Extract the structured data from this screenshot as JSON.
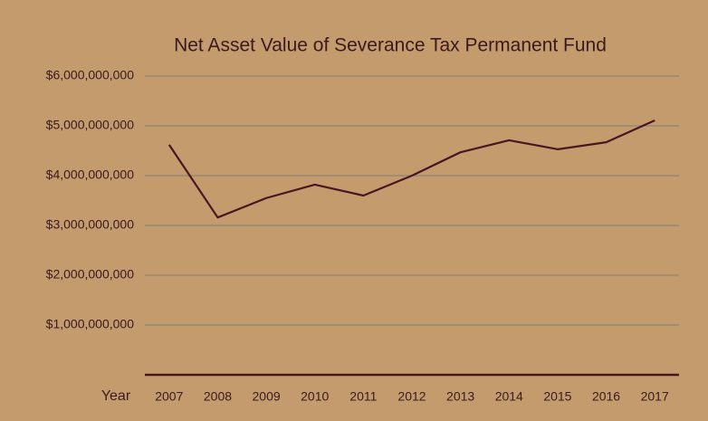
{
  "chart_data": {
    "type": "line",
    "title": "Net Asset Value of Severance Tax Permanent Fund",
    "x_label": "Year",
    "categories": [
      "2007",
      "2008",
      "2009",
      "2010",
      "2011",
      "2012",
      "2013",
      "2014",
      "2015",
      "2016",
      "2017"
    ],
    "series": [
      {
        "name": "Net Asset Value",
        "color": "#4a1522",
        "values": [
          4620000000,
          3160000000,
          3550000000,
          3820000000,
          3600000000,
          4000000000,
          4470000000,
          4710000000,
          4530000000,
          4670000000,
          5110000000
        ]
      }
    ],
    "ylim": [
      0,
      6000000000
    ],
    "yticks": [
      {
        "value": 1000000000,
        "label": "$1,000,000,000"
      },
      {
        "value": 2000000000,
        "label": "$2,000,000,000"
      },
      {
        "value": 3000000000,
        "label": "$3,000,000,000"
      },
      {
        "value": 4000000000,
        "label": "$4,000,000,000"
      },
      {
        "value": 5000000000,
        "label": "$5,000,000,000"
      },
      {
        "value": 6000000000,
        "label": "$6,000,000,000"
      }
    ],
    "grid": true,
    "legend": false
  }
}
